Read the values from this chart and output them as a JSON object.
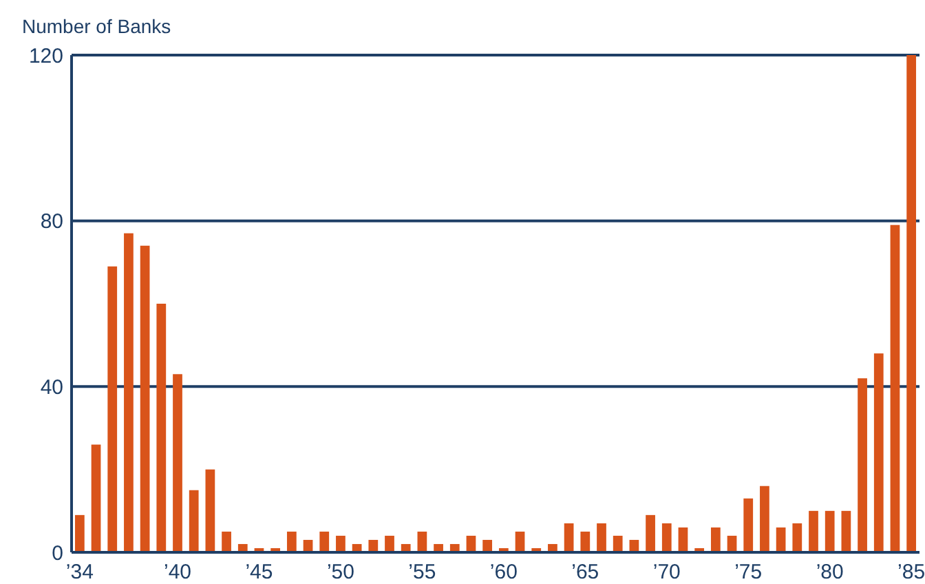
{
  "chart_data": {
    "type": "bar",
    "ylabel": "Number of Banks",
    "x": [
      1934,
      1935,
      1936,
      1937,
      1938,
      1939,
      1940,
      1941,
      1942,
      1943,
      1944,
      1945,
      1946,
      1947,
      1948,
      1949,
      1950,
      1951,
      1952,
      1953,
      1954,
      1955,
      1956,
      1957,
      1958,
      1959,
      1960,
      1961,
      1962,
      1963,
      1964,
      1965,
      1966,
      1967,
      1968,
      1969,
      1970,
      1971,
      1972,
      1973,
      1974,
      1975,
      1976,
      1977,
      1978,
      1979,
      1980,
      1981,
      1982,
      1983,
      1984,
      1985
    ],
    "values": [
      9,
      26,
      69,
      77,
      74,
      60,
      43,
      15,
      20,
      5,
      2,
      1,
      1,
      5,
      3,
      5,
      4,
      2,
      3,
      4,
      2,
      5,
      2,
      2,
      4,
      3,
      1,
      5,
      1,
      2,
      7,
      5,
      7,
      4,
      3,
      9,
      7,
      6,
      1,
      6,
      4,
      13,
      16,
      6,
      7,
      10,
      10,
      10,
      42,
      48,
      79,
      120
    ],
    "color": "#d9541a",
    "xlim": [
      1933.5,
      1985.5
    ],
    "xticks": [
      {
        "value": 1934,
        "label": "’34"
      },
      {
        "value": 1940,
        "label": "’40"
      },
      {
        "value": 1945,
        "label": "’45"
      },
      {
        "value": 1950,
        "label": "’50"
      },
      {
        "value": 1955,
        "label": "’55"
      },
      {
        "value": 1960,
        "label": "’60"
      },
      {
        "value": 1965,
        "label": "’65"
      },
      {
        "value": 1970,
        "label": "’70"
      },
      {
        "value": 1975,
        "label": "’75"
      },
      {
        "value": 1980,
        "label": "’80"
      },
      {
        "value": 1985,
        "label": "’85"
      }
    ],
    "ylim": [
      0,
      120
    ],
    "yticks": [
      0,
      40,
      80,
      120
    ],
    "grid": "y"
  }
}
